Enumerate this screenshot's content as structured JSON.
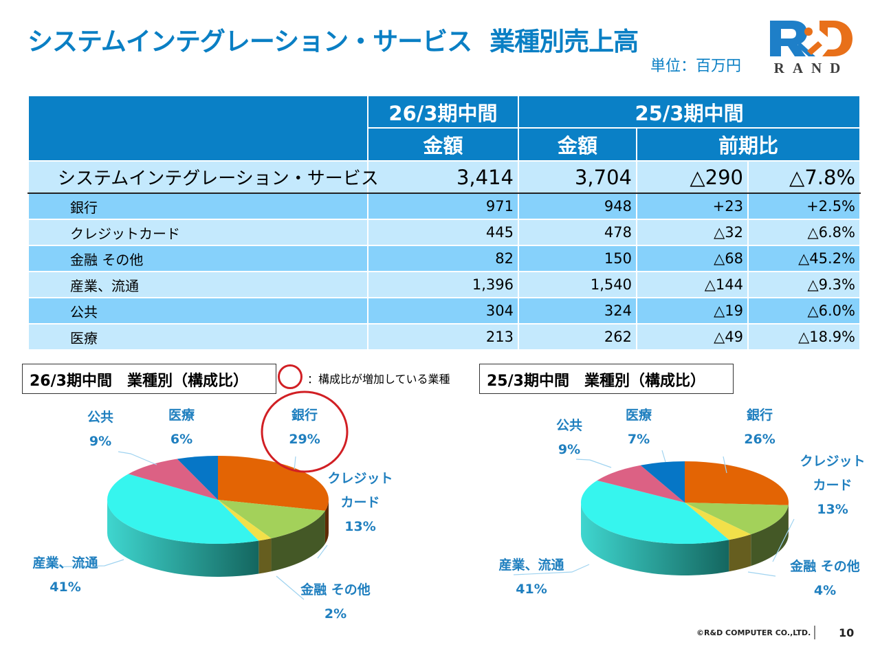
{
  "header": {
    "title_main": "システムインテグレーション・サービス",
    "title_sub": "業種別売上高",
    "unit": "単位：百万円",
    "logo_text": "RAND",
    "logo_mark": "R&D",
    "brand_colors": {
      "blue": "#1e7fc8",
      "orange": "#e8701a",
      "gray": "#3d3d3d"
    }
  },
  "table": {
    "period_current": "26/3期中間",
    "period_prev": "25/3期中間",
    "col_amount": "金額",
    "col_amount_prev": "金額",
    "col_yoy": "前期比",
    "total": {
      "label": "システムインテグレーション・サービス",
      "current": "3,414",
      "prev": "3,704",
      "diff": "△290",
      "ratio": "△7.8%"
    },
    "rows": [
      {
        "label": "銀行",
        "current": "971",
        "prev": "948",
        "diff": "+23",
        "ratio": "+2.5%"
      },
      {
        "label": "クレジットカード",
        "current": "445",
        "prev": "478",
        "diff": "△32",
        "ratio": "△6.8%"
      },
      {
        "label": "金融 その他",
        "current": "82",
        "prev": "150",
        "diff": "△68",
        "ratio": "△45.2%"
      },
      {
        "label": "産業、流通",
        "current": "1,396",
        "prev": "1,540",
        "diff": "△144",
        "ratio": "△9.3%"
      },
      {
        "label": "公共",
        "current": "304",
        "prev": "324",
        "diff": "△19",
        "ratio": "△6.0%"
      },
      {
        "label": "医療",
        "current": "213",
        "prev": "262",
        "diff": "△49",
        "ratio": "△18.9%"
      }
    ]
  },
  "legend": {
    "note": "：構成比が増加している業種",
    "highlight_color": "#d11f24"
  },
  "chart_data": [
    {
      "type": "pie",
      "title": "26/3期中間　業種別（構成比）",
      "categories": [
        "銀行",
        "クレジットカード",
        "金融 その他",
        "産業、流通",
        "公共",
        "医療"
      ],
      "values": [
        29,
        13,
        2,
        41,
        9,
        6
      ],
      "value_labels": [
        "29%",
        "13%",
        "2%",
        "41%",
        "9%",
        "6%"
      ],
      "label_lines": [
        [
          "銀行"
        ],
        [
          "クレジット",
          "カード"
        ],
        [
          "金融 その他"
        ],
        [
          "産業、流通"
        ],
        [
          "公共"
        ],
        [
          "医療"
        ]
      ],
      "colors": [
        "#e36404",
        "#a3d15a",
        "#f2e04a",
        "#36f5ee",
        "#dc6184",
        "#0676c6"
      ],
      "highlighted": [
        "銀行"
      ],
      "unit": "%"
    },
    {
      "type": "pie",
      "title": "25/3期中間　業種別（構成比）",
      "categories": [
        "銀行",
        "クレジットカード",
        "金融 その他",
        "産業、流通",
        "公共",
        "医療"
      ],
      "values": [
        26,
        13,
        4,
        41,
        9,
        7
      ],
      "value_labels": [
        "26%",
        "13%",
        "4%",
        "41%",
        "9%",
        "7%"
      ],
      "label_lines": [
        [
          "銀行"
        ],
        [
          "クレジット",
          "カード"
        ],
        [
          "金融 その他"
        ],
        [
          "産業、流通"
        ],
        [
          "公共"
        ],
        [
          "医療"
        ]
      ],
      "colors": [
        "#e36404",
        "#a3d15a",
        "#f2e04a",
        "#36f5ee",
        "#dc6184",
        "#0676c6"
      ],
      "highlighted": [],
      "unit": "%"
    }
  ],
  "footer": {
    "copyright": "©R&D COMPUTER CO.,LTD.",
    "page": "10"
  }
}
